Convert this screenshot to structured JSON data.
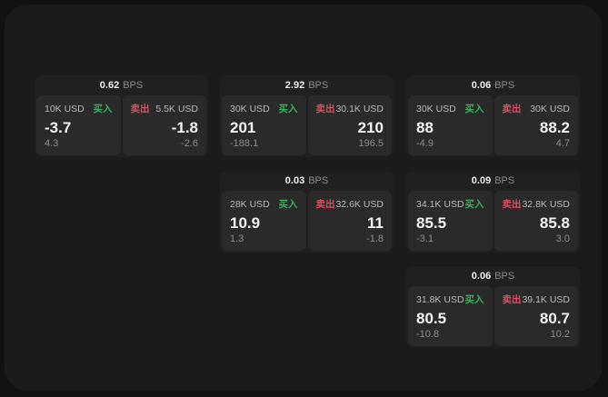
{
  "labels": {
    "bps": "BPS",
    "buy": "买入",
    "sell": "卖出"
  },
  "colors": {
    "background_outer": "#121212",
    "background_window": "#1b1b1c",
    "card": "#202021",
    "panel": "#2a2a2b",
    "buy_green": "#3cae5c",
    "sell_red": "#d8505f",
    "value_white": "#f5f5f5",
    "muted_gray": "#8d8d8d"
  },
  "cards": [
    {
      "bps": "0.62",
      "buy": {
        "amount": "10K USD",
        "value": "-3.7",
        "delta": "4.3"
      },
      "sell": {
        "amount": "5.5K USD",
        "value": "-1.8",
        "delta": "-2.6"
      }
    },
    {
      "bps": "2.92",
      "buy": {
        "amount": "30K USD",
        "value": "201",
        "delta": "-188.1"
      },
      "sell": {
        "amount": "30.1K USD",
        "value": "210",
        "delta": "196.5"
      }
    },
    {
      "bps": "0.06",
      "buy": {
        "amount": "30K USD",
        "value": "88",
        "delta": "-4.9"
      },
      "sell": {
        "amount": "30K USD",
        "value": "88.2",
        "delta": "4.7"
      }
    },
    {
      "bps": "0.03",
      "buy": {
        "amount": "28K USD",
        "value": "10.9",
        "delta": "1.3"
      },
      "sell": {
        "amount": "32.6K USD",
        "value": "11",
        "delta": "-1.8"
      }
    },
    {
      "bps": "0.09",
      "buy": {
        "amount": "34.1K USD",
        "value": "85.5",
        "delta": "-3.1"
      },
      "sell": {
        "amount": "32.8K USD",
        "value": "85.8",
        "delta": "3.0"
      }
    },
    {
      "bps": "0.06",
      "buy": {
        "amount": "31.8K USD",
        "value": "80.5",
        "delta": "-10.8"
      },
      "sell": {
        "amount": "39.1K USD",
        "value": "80.7",
        "delta": "10.2"
      }
    }
  ]
}
